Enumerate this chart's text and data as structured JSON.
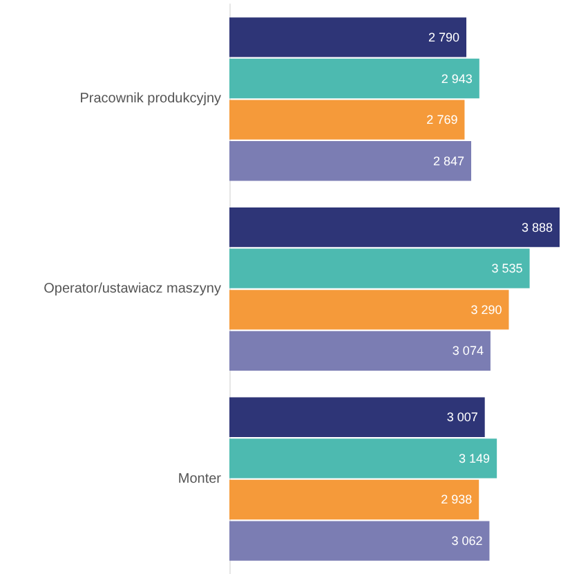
{
  "chart_data": {
    "type": "bar",
    "orientation": "horizontal",
    "categories": [
      "Pracownik produkcyjny",
      "Operator/ustawiacz maszyny",
      "Monter"
    ],
    "series": [
      {
        "color": "#2e3577",
        "values": [
          2790,
          3888,
          3007
        ],
        "value_labels": [
          "2 790",
          "3 888",
          "3 007"
        ]
      },
      {
        "color": "#4dbab0",
        "values": [
          2943,
          3535,
          3149
        ],
        "value_labels": [
          "2 943",
          "3 535",
          "3 149"
        ]
      },
      {
        "color": "#f59a3a",
        "values": [
          2769,
          3290,
          2938
        ],
        "value_labels": [
          "2 769",
          "3 290",
          "2 938"
        ]
      },
      {
        "color": "#7b7db3",
        "values": [
          2847,
          3074,
          3062
        ],
        "value_labels": [
          "2 847",
          "3 074",
          "3 062"
        ]
      }
    ],
    "tick_labels": "y"
  }
}
